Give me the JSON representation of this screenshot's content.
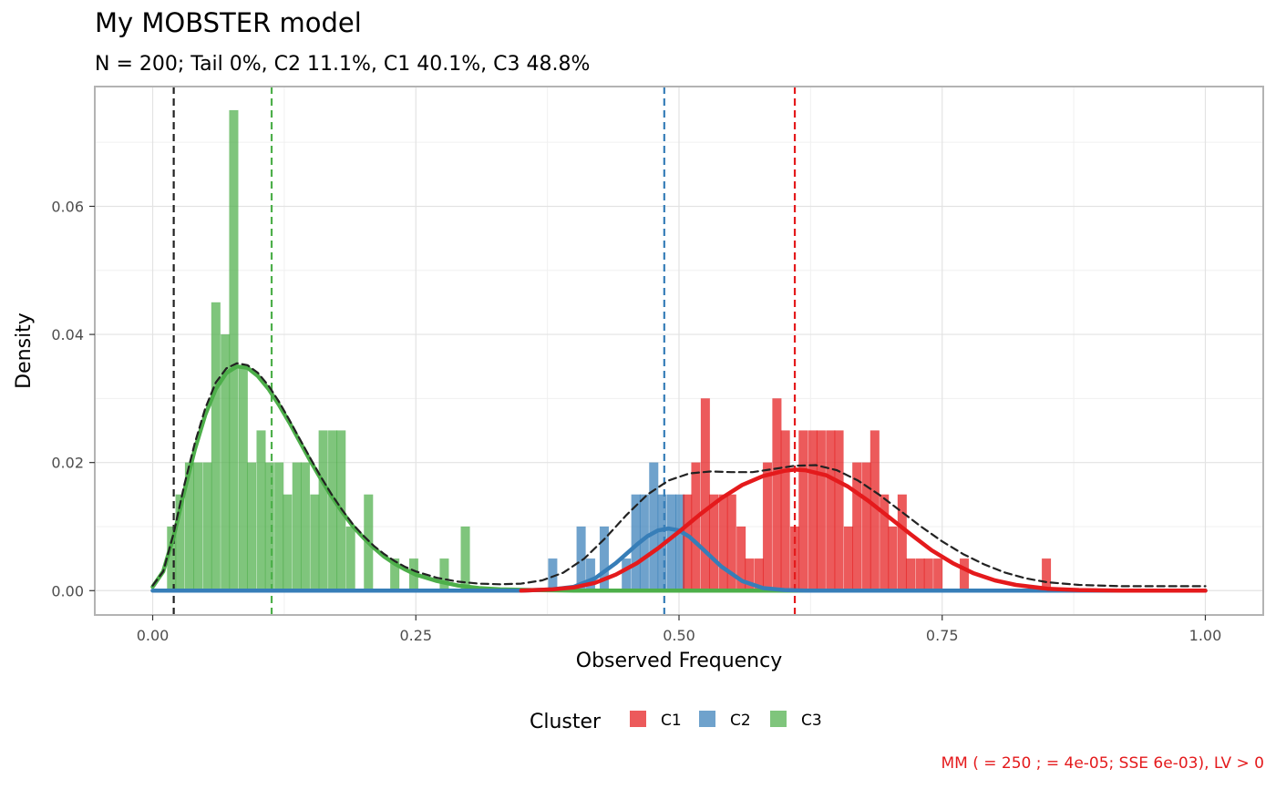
{
  "chart_data": {
    "type": "bar",
    "title": "My MOBSTER model",
    "subtitle": "N = 200; Tail 0%, C2 11.1%, C1 40.1%, C3 48.8%",
    "xlabel": "Observed Frequency",
    "ylabel": "Density",
    "xlim": [
      -0.055,
      1.055
    ],
    "ylim": [
      -0.0038,
      0.0787
    ],
    "x_ticks": [
      0,
      0.25,
      0.5,
      0.75,
      1
    ],
    "x_tick_labels": [
      "0.00",
      "0.25",
      "0.50",
      "0.75",
      "1.00"
    ],
    "y_ticks": [
      0,
      0.02,
      0.04,
      0.06
    ],
    "y_tick_labels": [
      "0.00",
      "0.02",
      "0.04",
      "0.06"
    ],
    "grid": true,
    "legend": {
      "title": "Cluster",
      "position": "bottom",
      "items": [
        {
          "label": "C1",
          "color": "#e41a1c"
        },
        {
          "label": "C2",
          "color": "#377eb8"
        },
        {
          "label": "C3",
          "color": "#4daf4a"
        }
      ]
    },
    "caption": "MM (  = 250 ;   = 4e-05; SSE 6e-03), LV > 0",
    "bin_width": 0.0085,
    "series": [
      {
        "name": "C3",
        "color": "#4daf4a",
        "bars": [
          [
            0.018,
            0.01
          ],
          [
            0.026,
            0.015
          ],
          [
            0.035,
            0.02
          ],
          [
            0.043,
            0.02
          ],
          [
            0.052,
            0.02
          ],
          [
            0.06,
            0.045
          ],
          [
            0.069,
            0.04
          ],
          [
            0.077,
            0.075
          ],
          [
            0.086,
            0.035
          ],
          [
            0.094,
            0.02
          ],
          [
            0.103,
            0.025
          ],
          [
            0.111,
            0.02
          ],
          [
            0.12,
            0.02
          ],
          [
            0.128,
            0.015
          ],
          [
            0.137,
            0.02
          ],
          [
            0.145,
            0.02
          ],
          [
            0.154,
            0.015
          ],
          [
            0.162,
            0.025
          ],
          [
            0.171,
            0.025
          ],
          [
            0.179,
            0.025
          ],
          [
            0.188,
            0.01
          ],
          [
            0.205,
            0.015
          ],
          [
            0.23,
            0.005
          ],
          [
            0.248,
            0.005
          ],
          [
            0.277,
            0.005
          ],
          [
            0.297,
            0.01
          ]
        ]
      },
      {
        "name": "C2",
        "color": "#377eb8",
        "bars": [
          [
            0.38,
            0.005
          ],
          [
            0.407,
            0.01
          ],
          [
            0.416,
            0.005
          ],
          [
            0.429,
            0.01
          ],
          [
            0.45,
            0.005
          ],
          [
            0.459,
            0.015
          ],
          [
            0.467,
            0.015
          ],
          [
            0.476,
            0.02
          ],
          [
            0.484,
            0.015
          ],
          [
            0.493,
            0.015
          ],
          [
            0.501,
            0.015
          ]
        ]
      },
      {
        "name": "C1",
        "color": "#e41a1c",
        "bars": [
          [
            0.508,
            0.015
          ],
          [
            0.516,
            0.02
          ],
          [
            0.525,
            0.03
          ],
          [
            0.533,
            0.015
          ],
          [
            0.542,
            0.015
          ],
          [
            0.55,
            0.015
          ],
          [
            0.559,
            0.01
          ],
          [
            0.567,
            0.005
          ],
          [
            0.576,
            0.005
          ],
          [
            0.584,
            0.02
          ],
          [
            0.593,
            0.03
          ],
          [
            0.601,
            0.025
          ],
          [
            0.61,
            0.01
          ],
          [
            0.618,
            0.025
          ],
          [
            0.627,
            0.025
          ],
          [
            0.635,
            0.025
          ],
          [
            0.644,
            0.025
          ],
          [
            0.652,
            0.025
          ],
          [
            0.661,
            0.01
          ],
          [
            0.669,
            0.02
          ],
          [
            0.678,
            0.02
          ],
          [
            0.686,
            0.025
          ],
          [
            0.695,
            0.015
          ],
          [
            0.703,
            0.01
          ],
          [
            0.712,
            0.015
          ],
          [
            0.72,
            0.005
          ],
          [
            0.729,
            0.005
          ],
          [
            0.737,
            0.005
          ],
          [
            0.746,
            0.005
          ],
          [
            0.771,
            0.005
          ],
          [
            0.849,
            0.005
          ]
        ]
      }
    ],
    "density_lines": [
      {
        "name": "C3",
        "color": "#4daf4a",
        "points": [
          [
            0,
            0.0006
          ],
          [
            0.01,
            0.003
          ],
          [
            0.02,
            0.0085
          ],
          [
            0.03,
            0.0155
          ],
          [
            0.04,
            0.022
          ],
          [
            0.05,
            0.0275
          ],
          [
            0.06,
            0.0315
          ],
          [
            0.07,
            0.034
          ],
          [
            0.08,
            0.035
          ],
          [
            0.09,
            0.0348
          ],
          [
            0.1,
            0.0335
          ],
          [
            0.11,
            0.0315
          ],
          [
            0.12,
            0.029
          ],
          [
            0.13,
            0.0262
          ],
          [
            0.14,
            0.0232
          ],
          [
            0.15,
            0.0202
          ],
          [
            0.16,
            0.0174
          ],
          [
            0.17,
            0.0147
          ],
          [
            0.18,
            0.0123
          ],
          [
            0.19,
            0.0101
          ],
          [
            0.2,
            0.0083
          ],
          [
            0.21,
            0.0067
          ],
          [
            0.22,
            0.0053
          ],
          [
            0.23,
            0.0042
          ],
          [
            0.24,
            0.0033
          ],
          [
            0.25,
            0.0025
          ],
          [
            0.27,
            0.0015
          ],
          [
            0.29,
            0.0008
          ],
          [
            0.31,
            0.0004
          ],
          [
            0.33,
            0.0002
          ],
          [
            0.36,
            0.0001
          ],
          [
            0.4,
            0
          ],
          [
            1.0,
            0
          ]
        ]
      },
      {
        "name": "C2",
        "color": "#377eb8",
        "points": [
          [
            0,
            0
          ],
          [
            0.35,
            0
          ],
          [
            0.38,
            0.0002
          ],
          [
            0.4,
            0.0006
          ],
          [
            0.42,
            0.0019
          ],
          [
            0.44,
            0.0043
          ],
          [
            0.46,
            0.0072
          ],
          [
            0.47,
            0.0085
          ],
          [
            0.48,
            0.0094
          ],
          [
            0.49,
            0.0097
          ],
          [
            0.5,
            0.0094
          ],
          [
            0.51,
            0.0084
          ],
          [
            0.52,
            0.0069
          ],
          [
            0.54,
            0.0038
          ],
          [
            0.56,
            0.0015
          ],
          [
            0.58,
            0.0004
          ],
          [
            0.6,
            0.0001
          ],
          [
            0.62,
            0
          ],
          [
            1.0,
            0
          ]
        ]
      },
      {
        "name": "C1",
        "color": "#e41a1c",
        "points": [
          [
            0.35,
            0
          ],
          [
            0.38,
            0.0002
          ],
          [
            0.4,
            0.0005
          ],
          [
            0.42,
            0.0012
          ],
          [
            0.44,
            0.0025
          ],
          [
            0.46,
            0.0043
          ],
          [
            0.48,
            0.0066
          ],
          [
            0.5,
            0.0092
          ],
          [
            0.52,
            0.0119
          ],
          [
            0.54,
            0.0144
          ],
          [
            0.56,
            0.0165
          ],
          [
            0.58,
            0.0179
          ],
          [
            0.6,
            0.0187
          ],
          [
            0.61,
            0.0189
          ],
          [
            0.62,
            0.0188
          ],
          [
            0.64,
            0.018
          ],
          [
            0.66,
            0.0163
          ],
          [
            0.68,
            0.014
          ],
          [
            0.7,
            0.0114
          ],
          [
            0.72,
            0.0088
          ],
          [
            0.74,
            0.0063
          ],
          [
            0.76,
            0.0043
          ],
          [
            0.78,
            0.0027
          ],
          [
            0.8,
            0.0016
          ],
          [
            0.82,
            0.0009
          ],
          [
            0.85,
            0.0003
          ],
          [
            0.88,
            0.0001
          ],
          [
            0.92,
            0
          ],
          [
            1.0,
            0
          ]
        ]
      },
      {
        "name": "mixture",
        "color": "#222222",
        "dashed": true,
        "points": [
          [
            0,
            0.0008
          ],
          [
            0.01,
            0.003
          ],
          [
            0.02,
            0.009
          ],
          [
            0.03,
            0.0165
          ],
          [
            0.04,
            0.023
          ],
          [
            0.05,
            0.0285
          ],
          [
            0.06,
            0.0325
          ],
          [
            0.07,
            0.0347
          ],
          [
            0.08,
            0.0355
          ],
          [
            0.09,
            0.0352
          ],
          [
            0.1,
            0.034
          ],
          [
            0.11,
            0.032
          ],
          [
            0.12,
            0.0295
          ],
          [
            0.13,
            0.0266
          ],
          [
            0.14,
            0.0236
          ],
          [
            0.15,
            0.0206
          ],
          [
            0.16,
            0.0177
          ],
          [
            0.17,
            0.015
          ],
          [
            0.18,
            0.0126
          ],
          [
            0.19,
            0.0104
          ],
          [
            0.2,
            0.0086
          ],
          [
            0.21,
            0.007
          ],
          [
            0.22,
            0.0057
          ],
          [
            0.23,
            0.0046
          ],
          [
            0.24,
            0.0037
          ],
          [
            0.25,
            0.003
          ],
          [
            0.27,
            0.002
          ],
          [
            0.29,
            0.0014
          ],
          [
            0.31,
            0.0011
          ],
          [
            0.33,
            0.001
          ],
          [
            0.35,
            0.0011
          ],
          [
            0.37,
            0.0016
          ],
          [
            0.39,
            0.0028
          ],
          [
            0.41,
            0.005
          ],
          [
            0.43,
            0.0082
          ],
          [
            0.45,
            0.0118
          ],
          [
            0.47,
            0.015
          ],
          [
            0.49,
            0.0172
          ],
          [
            0.51,
            0.0183
          ],
          [
            0.53,
            0.0186
          ],
          [
            0.55,
            0.0185
          ],
          [
            0.57,
            0.0185
          ],
          [
            0.59,
            0.019
          ],
          [
            0.61,
            0.0195
          ],
          [
            0.63,
            0.0196
          ],
          [
            0.65,
            0.0188
          ],
          [
            0.67,
            0.0172
          ],
          [
            0.69,
            0.015
          ],
          [
            0.71,
            0.0125
          ],
          [
            0.73,
            0.01
          ],
          [
            0.75,
            0.0077
          ],
          [
            0.77,
            0.0057
          ],
          [
            0.79,
            0.0041
          ],
          [
            0.81,
            0.0028
          ],
          [
            0.83,
            0.0019
          ],
          [
            0.85,
            0.0013
          ],
          [
            0.88,
            0.0009
          ],
          [
            0.92,
            0.0007
          ],
          [
            0.96,
            0.0007
          ],
          [
            1.0,
            0.0007
          ]
        ]
      }
    ],
    "vlines": [
      {
        "x": 0.02,
        "color": "#222222"
      },
      {
        "x": 0.113,
        "color": "#4daf4a"
      },
      {
        "x": 0.486,
        "color": "#377eb8"
      },
      {
        "x": 0.61,
        "color": "#e41a1c"
      }
    ]
  }
}
